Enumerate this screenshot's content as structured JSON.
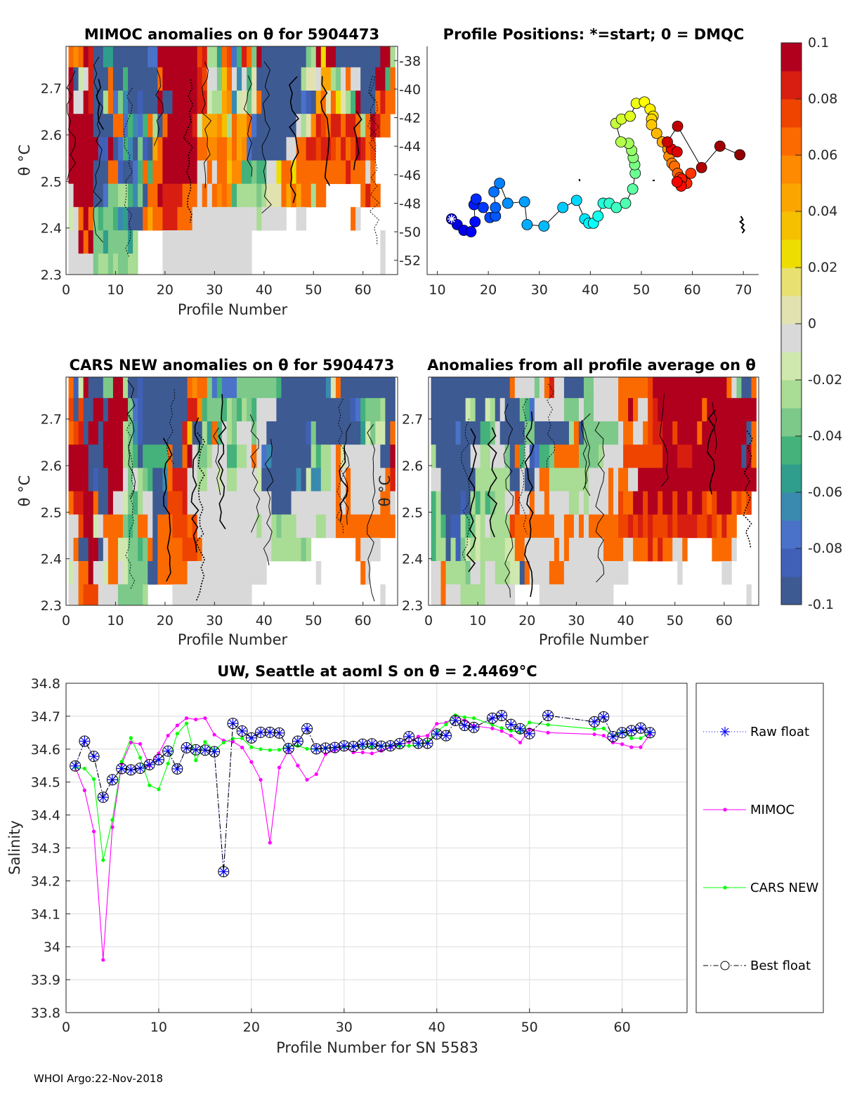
{
  "footer": "WHOI Argo:22-Nov-2018",
  "colorbar": {
    "range": [
      -0.1,
      0.1
    ],
    "ticks": [
      "0.1",
      "0.08",
      "0.06",
      "0.04",
      "0.02",
      "0",
      "-0.02",
      "-0.04",
      "-0.06",
      "-0.08",
      "-0.1"
    ],
    "stops": [
      "#3d5a93",
      "#4060b8",
      "#4a72c8",
      "#3a8ab0",
      "#2f9e8c",
      "#44b27a",
      "#7cc98a",
      "#a9dc94",
      "#cfe8ad",
      "#d9d9d9",
      "#e2e2b0",
      "#e8e070",
      "#eedd00",
      "#f5c000",
      "#fba600",
      "#fd8a00",
      "#fb6a00",
      "#ee4400",
      "#d81e10",
      "#b0001e"
    ]
  },
  "chart_data": [
    {
      "type": "heatmap",
      "title": "MIMOC anomalies on θ  for 5904473",
      "xlabel": "Profile Number",
      "ylabel": "θ °C",
      "xlim": [
        0,
        67
      ],
      "ylim": [
        2.3,
        2.79
      ],
      "xticks": [
        "0",
        "10",
        "20",
        "30",
        "40",
        "50",
        "60"
      ],
      "yticks": [
        "2.3",
        "2.4",
        "2.5",
        "2.6",
        "2.7"
      ],
      "bins": [
        2.75,
        2.7,
        2.65,
        2.6,
        2.55,
        2.5,
        2.45,
        2.4,
        2.35,
        2.3
      ],
      "note": "row codes a..t map to anomaly -0.1..0.1; '.' = no data",
      "rows": [
        "qpqtsaaeeaaaaaaaccttttttttrshheqrcfsqgtaaaaaaaaaghtmttaaaaaaaaatthfb",
        "taijsaaaqaafaaaaaaqtttttttsrjjgnqjdjfkaaaaaaaaahkkjoohgjqjjaaattfqj",
        "tjjtsaahqcgdaabaaataatttttssihhopdikgkqaaaaaaaacbaoqkqmkhftaaaqsqq",
        "tttttaaaaqqcfdcfqhaqtttttsiooopnhqooqcaaaaaaaajhkpsrqssqssqhqtsqq",
        "ttttttbbtacfdagbaoqtttttttqqppqqoqopcaaaaaaajjqqssrssrqsqrtsqr..",
        "tttttaaaqqbaacfqfqqtttttttjjqjqqnppffgffjjmqqmqqqqqqqqqqsqqqjq..",
        "jttttaacgghhfdgaqqtssssqqqjqjqpqpfhhhhghkkkqoqoqqhqq.......qsqq..",
        "ijqtqgfggfdeaaaqoqqsssqqqjjjjjjjjjjjjjhjjjjj..jj.........qj.....",
        "jjtqtggeggggeh.....jjjjjjjjjjjjjjjjjj..........................j",
        "jjjjjghhghgghh.....jjjjjjjjjjjjjjjjjj..........................j"
      ],
      "right_axis": {
        "ylim": [
          -53,
          -37
        ],
        "ticks": [
          "-38",
          "-40",
          "-42",
          "-44",
          "-46",
          "-48",
          "-50",
          "-52"
        ]
      }
    },
    {
      "type": "scatter",
      "title": "Profile Positions: *=start; 0 = DMQC",
      "xlim": [
        8,
        73
      ],
      "ylim": [
        -53,
        -37
      ],
      "xticks": [
        "10",
        "20",
        "30",
        "40",
        "50",
        "60",
        "70"
      ],
      "start_marker": [
        12.8,
        -49.1
      ],
      "points": [
        [
          12.8,
          -49.1
        ],
        [
          13.9,
          -49.5
        ],
        [
          15.2,
          -49.9
        ],
        [
          16.6,
          -50
        ],
        [
          17.4,
          -49.3
        ],
        [
          17.2,
          -48.1
        ],
        [
          17.6,
          -47.7
        ],
        [
          19,
          -48.3
        ],
        [
          20.3,
          -49
        ],
        [
          21.4,
          -48.9
        ],
        [
          21.4,
          -48.3
        ],
        [
          21.1,
          -47.2
        ],
        [
          22.2,
          -46.6
        ],
        [
          23.8,
          -48
        ],
        [
          27.1,
          -47.9
        ],
        [
          27.6,
          -49.5
        ],
        [
          30.9,
          -49.6
        ],
        [
          34.6,
          -48.3
        ],
        [
          37.3,
          -47.8
        ],
        [
          38.9,
          -49.1
        ],
        [
          39.7,
          -49.4
        ],
        [
          40.6,
          -49.4
        ],
        [
          41.5,
          -48.9
        ],
        [
          42.5,
          -48
        ],
        [
          43.7,
          -48
        ],
        [
          45.1,
          -48.3
        ],
        [
          46.9,
          -48
        ],
        [
          48.3,
          -47
        ],
        [
          48.8,
          -45.9
        ],
        [
          48.7,
          -45.3
        ],
        [
          48.4,
          -44.8
        ],
        [
          48.1,
          -44.3
        ],
        [
          47.5,
          -43.8
        ],
        [
          46,
          -43.7
        ],
        [
          45,
          -42.4
        ],
        [
          46.1,
          -42.1
        ],
        [
          47.8,
          -41.9
        ],
        [
          49,
          -41
        ],
        [
          50.6,
          -40.9
        ],
        [
          51.7,
          -41.4
        ],
        [
          52.3,
          -41.9
        ],
        [
          52,
          -42.1
        ],
        [
          52,
          -42.5
        ],
        [
          53,
          -43.1
        ],
        [
          54.1,
          -43.7
        ],
        [
          55.2,
          -44.2
        ],
        [
          55.4,
          -44.7
        ],
        [
          56,
          -45.2
        ],
        [
          56.5,
          -45.4
        ],
        [
          57.1,
          -45.9
        ],
        [
          57.6,
          -46.2
        ],
        [
          58.4,
          -46.4
        ],
        [
          59.7,
          -45.9
        ],
        [
          58.9,
          -46.6
        ],
        [
          57.9,
          -46.3
        ],
        [
          57.8,
          -46.8
        ],
        [
          57,
          -46.5
        ],
        [
          55.9,
          -44.2
        ],
        [
          57,
          -44.4
        ],
        [
          55.1,
          -43.7
        ],
        [
          57.1,
          -42.6
        ],
        [
          61.8,
          -45.5
        ],
        [
          65.4,
          -44
        ],
        [
          69.3,
          -44.6
        ]
      ],
      "dmqc_cluster": [
        69.5,
        -49.5
      ]
    },
    {
      "type": "heatmap",
      "title": "CARS NEW anomalies on θ for 5904473",
      "xlabel": "Profile Number",
      "ylabel": "θ °C",
      "xlim": [
        0,
        67
      ],
      "ylim": [
        2.3,
        2.79
      ],
      "xticks": [
        "0",
        "10",
        "20",
        "30",
        "40",
        "50",
        "60"
      ],
      "yticks": [
        "2.3",
        "2.4",
        "2.5",
        "2.6",
        "2.7"
      ],
      "rows": [
        "qbitaaaggtthaabaaaaaaaaaqpqqgcfcccggggggggfaaaaaaaaadkqaaaaaaaaaaattij",
        "raraattattttgcbaaaaaaaaasspfgggfhgfhgfjjjjaaaaaaaaaaaaaaabcfggghaatqqgj",
        "qrsattatttthgdbaaaaaaaasnaaheqfjhgjjjgjjaaaaaaaabgaaaaaaaaaeigiiaqjq",
        "ttttaaatttthgfafffffqaaqtjgghjjjffhhjqjcdaaaaaaaahfhhjqijjjjjjjaattqq",
        "ttttabaatttjgjhgfaadqsssjjhhjjijhhjjjjiaaaaaaadaiddhhjqjqjjjjjjjqs..",
        "qssttqaatjjigfhjjaaarrrsjjjjjjjjjjjjjjjjjaaaajjjjjjjjjqjqjjjjjjqqj..",
        "jjrttijqqqqgfgqqjaqqqrrrqrjjjjjjjjjjjjhjjhghhhjjjjhhjjqqqqqqqqqqqq..",
        "jqaattajqqiiggfgqaqqqqqrrrqjjjjjjjjjjjjjjhhhhhhgh.........qjjjj.....",
        "ijqqtjjiqqjiggggaaqqqqqqjjjjjjjjjjjjjjjj..........j........qj.....",
        "jjqrrrjjjjgggggh.....jjjjjjjjjjjjjjjj..........................j."
      ],
      "right_axis": {
        "label": "θ °C",
        "ticks": [
          "2.3",
          "2.4",
          "2.5",
          "2.6",
          "2.7"
        ]
      }
    },
    {
      "type": "heatmap",
      "title": "Anomalies from all profile average on θ",
      "xlabel": "Profile Number",
      "xlim": [
        0,
        67
      ],
      "ylim": [
        2.3,
        2.79
      ],
      "xticks": [
        "0",
        "10",
        "20",
        "30",
        "40",
        "50",
        "60"
      ],
      "rows": [
        "aaaaaaaaaaaaaaaaqjjjjgjqsjjaaaaggjjjjjqqqqqqrtttttttttttttttqjgaaqttttt",
        "aaaaaaaihaaihajaaagfcjjjjjjgggjggjjjjjqqtqjjrstttttttttqttttttttttttqt",
        "aaaaacaaaaffgjaaaaaggaaaaaaahqagggggggjqqjjqrssttrttttqtttttttttaqqtt",
        "haaaaaaajjhhjjjgaqfjbcffgqqqqqgggghjjjjrrrrrrrrtttsssttttttttttatqtt",
        "jjaaaaaaahhhhhhhaajaajqqhhhhhhhhjjjjqjqqjjtttttttttttttttttttttttt..",
        "fhaaaabahfhfghhjjrjjqjjqjjjjhhjhjjjjqjrqqttrttrttrttrttrqrtttqrqr...",
        "fhfabbhfgihjhhhhrqqqqqqqqjjqqjqjqqqqqqrrsrsrsrrrsrssssrrsrqsqq...",
        "fhhahbgihihhhhhiiqqjjjjjjqjqjjjjjjjqqqqjjqqqsqsqqjjq.....qqqqj....",
        "jjqhhhhgjjhjjhhhiiaqjjjjqqqjjjjjjjjjjjjj..........j........jj......",
        "jjqjjjhhhhhjjjjjj.....jjjjjjjjjjjjjjj...........................j.."
      ]
    },
    {
      "type": "line",
      "title": "UW, Seattle at aoml S on θ = 2.4469°C",
      "xlabel": "Profile Number for SN 5583",
      "ylabel": "Salinity",
      "xlim": [
        0,
        67
      ],
      "ylim": [
        33.8,
        34.8
      ],
      "grid": true,
      "xticks": [
        "0",
        "10",
        "20",
        "30",
        "40",
        "50",
        "60"
      ],
      "yticks": [
        "34.8",
        "34.7",
        "34.6",
        "34.5",
        "34.4",
        "34.3",
        "34.2",
        "34.1",
        "34",
        "33.9",
        "33.8"
      ],
      "legend_position": "outside-right",
      "x": [
        1,
        2,
        3,
        4,
        5,
        6,
        7,
        8,
        9,
        10,
        11,
        12,
        13,
        14,
        15,
        16,
        17,
        18,
        19,
        20,
        21,
        22,
        23,
        24,
        25,
        26,
        27,
        28,
        29,
        30,
        31,
        32,
        33,
        34,
        35,
        36,
        37,
        38,
        39,
        40,
        41,
        42,
        43,
        44,
        46,
        47,
        48,
        49,
        50,
        52,
        57,
        58,
        59,
        60,
        61,
        62,
        63
      ],
      "series": [
        {
          "name": "Raw float",
          "color": "#0000ff",
          "style": "dotted",
          "marker": "asterisk",
          "values": [
            34.549,
            34.624,
            34.578,
            34.454,
            34.507,
            34.541,
            34.537,
            34.542,
            34.553,
            34.568,
            34.594,
            34.54,
            34.604,
            34.598,
            34.597,
            34.592,
            34.228,
            34.678,
            34.655,
            34.634,
            34.651,
            34.651,
            34.649,
            34.602,
            34.624,
            34.662,
            34.601,
            34.603,
            34.605,
            34.61,
            34.608,
            34.615,
            34.616,
            34.609,
            34.61,
            34.617,
            34.638,
            34.618,
            34.618,
            34.646,
            34.641,
            34.687,
            34.672,
            34.666,
            34.694,
            34.702,
            34.675,
            34.662,
            34.647,
            34.702,
            34.683,
            34.698,
            34.638,
            34.65,
            34.656,
            34.664,
            34.65
          ]
        },
        {
          "name": "MIMOC",
          "color": "#ff00ff",
          "style": "solid",
          "marker": "dot",
          "values": [
            34.545,
            34.475,
            34.35,
            33.96,
            34.363,
            34.555,
            34.62,
            34.616,
            34.55,
            34.587,
            34.641,
            34.672,
            34.694,
            34.69,
            34.694,
            34.644,
            34.626,
            34.623,
            34.605,
            34.561,
            34.507,
            34.316,
            34.544,
            34.597,
            34.55,
            34.507,
            34.524,
            34.585,
            34.597,
            34.606,
            34.59,
            34.59,
            34.587,
            34.595,
            34.606,
            34.614,
            34.621,
            34.638,
            34.641,
            34.677,
            34.68,
            34.7,
            34.687,
            34.671,
            34.663,
            34.655,
            34.641,
            34.62,
            34.66,
            34.65,
            34.645,
            34.641,
            34.62,
            34.615,
            34.606,
            34.606,
            34.645
          ]
        },
        {
          "name": "CARS NEW",
          "color": "#00ff00",
          "style": "solid",
          "marker": "dot",
          "values": [
            34.545,
            34.541,
            34.509,
            34.263,
            34.385,
            34.562,
            34.634,
            34.574,
            34.49,
            34.478,
            34.556,
            34.647,
            34.678,
            34.566,
            34.622,
            34.597,
            34.62,
            34.632,
            34.633,
            34.606,
            34.6,
            34.597,
            34.598,
            34.609,
            34.61,
            34.601,
            34.599,
            34.603,
            34.604,
            34.606,
            34.608,
            34.608,
            34.607,
            34.609,
            34.611,
            34.61,
            34.61,
            34.612,
            34.622,
            34.653,
            34.675,
            34.703,
            34.697,
            34.694,
            34.674,
            34.664,
            34.656,
            34.652,
            34.681,
            34.674,
            34.661,
            34.663,
            34.64,
            34.654,
            34.633,
            34.633,
            34.651
          ]
        },
        {
          "name": "Best float",
          "color": "#000000",
          "style": "dashdot",
          "marker": "circle",
          "values": [
            34.549,
            34.624,
            34.578,
            34.454,
            34.507,
            34.541,
            34.537,
            34.542,
            34.553,
            34.568,
            34.594,
            34.54,
            34.604,
            34.598,
            34.597,
            34.592,
            34.228,
            34.678,
            34.655,
            34.634,
            34.651,
            34.651,
            34.649,
            34.602,
            34.624,
            34.662,
            34.601,
            34.603,
            34.605,
            34.61,
            34.608,
            34.615,
            34.616,
            34.609,
            34.61,
            34.617,
            34.638,
            34.618,
            34.618,
            34.646,
            34.641,
            34.687,
            34.672,
            34.666,
            34.694,
            34.702,
            34.675,
            34.662,
            34.647,
            34.702,
            34.683,
            34.698,
            34.638,
            34.65,
            34.656,
            34.664,
            34.65
          ]
        }
      ]
    }
  ]
}
